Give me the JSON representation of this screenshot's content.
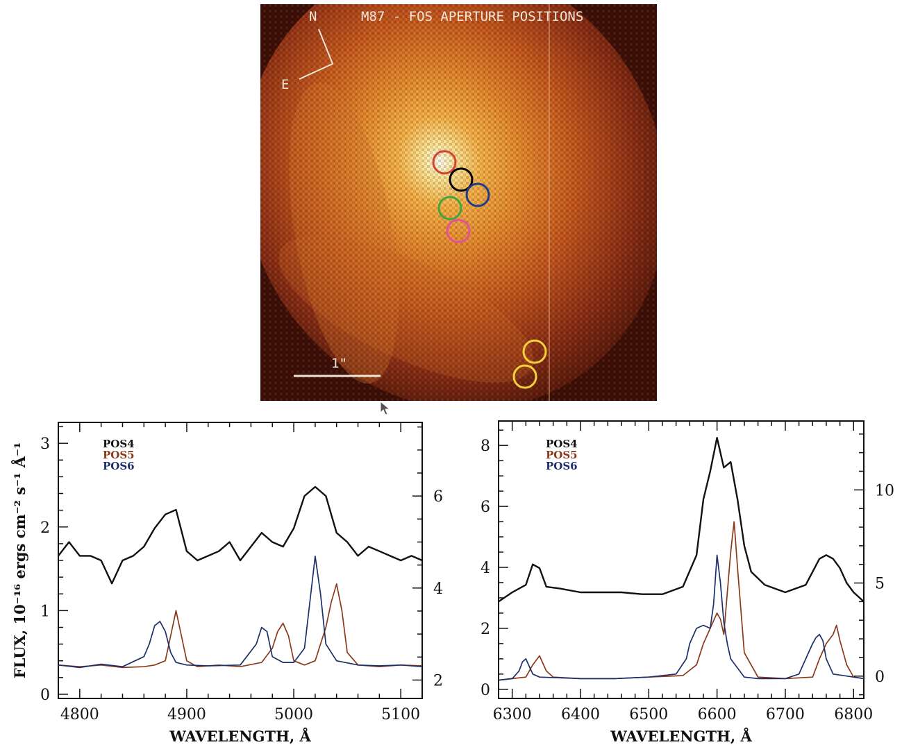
{
  "image_panel": {
    "title": "M87 - FOS APERTURE POSITIONS",
    "compass_north": "N",
    "compass_east": "E",
    "scale_label": "1\"",
    "apertures": [
      {
        "color": "#d2442f"
      },
      {
        "color": "#000000"
      },
      {
        "color": "#1d3c8c"
      },
      {
        "color": "#3da63d"
      },
      {
        "color": "#e4509a"
      },
      {
        "color": "#f3d23a"
      },
      {
        "color": "#f3d23a"
      }
    ]
  },
  "chart_data": [
    {
      "type": "line",
      "xlabel": "WAVELENGTH, Å",
      "ylabel": "FLUX, 10⁻¹⁶ ergs cm⁻² s⁻¹ Å⁻¹",
      "xlim": [
        4780,
        5120
      ],
      "ylim_left": [
        -0.05,
        3.25
      ],
      "ylim_right": [
        1.6,
        7.6
      ],
      "x_ticks": [
        4800,
        4900,
        5000,
        5100
      ],
      "y_ticks_left": [
        0,
        1,
        2,
        3
      ],
      "y_ticks_right": [
        2,
        4,
        6
      ],
      "legend": [
        "POS4",
        "POS5",
        "POS6"
      ],
      "legend_colors": [
        "#111111",
        "#8a3a1a",
        "#1d2f6a"
      ],
      "series": [
        {
          "name": "POS4",
          "axis": "right",
          "color": "#111111",
          "x": [
            4780,
            4790,
            4800,
            4810,
            4820,
            4830,
            4840,
            4850,
            4860,
            4870,
            4880,
            4890,
            4900,
            4910,
            4920,
            4930,
            4940,
            4950,
            4960,
            4970,
            4980,
            4990,
            5000,
            5010,
            5020,
            5030,
            5040,
            5050,
            5060,
            5070,
            5080,
            5090,
            5100,
            5110,
            5120
          ],
          "y": [
            4.7,
            5.0,
            4.7,
            4.7,
            4.6,
            4.1,
            4.6,
            4.7,
            4.9,
            5.3,
            5.6,
            5.7,
            4.8,
            4.6,
            4.7,
            4.8,
            5.0,
            4.6,
            4.9,
            5.2,
            5.0,
            4.9,
            5.3,
            6.0,
            6.2,
            6.0,
            5.2,
            5.0,
            4.7,
            4.9,
            4.8,
            4.7,
            4.6,
            4.7,
            4.6
          ]
        },
        {
          "name": "POS5",
          "axis": "left",
          "color": "#8a3a1a",
          "x": [
            4780,
            4800,
            4820,
            4840,
            4860,
            4870,
            4880,
            4885,
            4890,
            4895,
            4900,
            4910,
            4930,
            4950,
            4970,
            4980,
            4985,
            4990,
            4995,
            5000,
            5010,
            5020,
            5025,
            5030,
            5035,
            5040,
            5045,
            5050,
            5060,
            5080,
            5100,
            5120
          ],
          "y": [
            0.35,
            0.33,
            0.35,
            0.32,
            0.33,
            0.35,
            0.4,
            0.7,
            1.0,
            0.7,
            0.4,
            0.33,
            0.35,
            0.33,
            0.38,
            0.55,
            0.75,
            0.85,
            0.7,
            0.4,
            0.35,
            0.4,
            0.6,
            0.8,
            1.1,
            1.32,
            1.0,
            0.5,
            0.35,
            0.33,
            0.35,
            0.34
          ]
        },
        {
          "name": "POS6",
          "axis": "left",
          "color": "#1d2f6a",
          "x": [
            4780,
            4800,
            4820,
            4840,
            4860,
            4865,
            4870,
            4875,
            4880,
            4885,
            4890,
            4900,
            4920,
            4950,
            4965,
            4970,
            4975,
            4980,
            4990,
            5000,
            5010,
            5015,
            5020,
            5025,
            5030,
            5040,
            5060,
            5080,
            5100,
            5120
          ],
          "y": [
            0.35,
            0.32,
            0.36,
            0.33,
            0.45,
            0.6,
            0.82,
            0.87,
            0.75,
            0.5,
            0.38,
            0.35,
            0.34,
            0.35,
            0.6,
            0.8,
            0.75,
            0.45,
            0.38,
            0.38,
            0.55,
            1.1,
            1.65,
            1.2,
            0.6,
            0.4,
            0.35,
            0.34,
            0.35,
            0.33
          ]
        }
      ]
    },
    {
      "type": "line",
      "xlabel": "WAVELENGTH, Å",
      "ylabel": "",
      "xlim": [
        6280,
        6815
      ],
      "ylim_left": [
        -0.3,
        8.8
      ],
      "ylim_right": [
        -1.2,
        13.7
      ],
      "x_ticks": [
        6300,
        6400,
        6500,
        6600,
        6700,
        6800
      ],
      "y_ticks_left": [
        0,
        2,
        4,
        6,
        8
      ],
      "y_ticks_right": [
        0,
        5,
        10
      ],
      "legend": [
        "POS4",
        "POS5",
        "POS6"
      ],
      "legend_colors": [
        "#111111",
        "#8a3a1a",
        "#1d2f6a"
      ],
      "series": [
        {
          "name": "POS4",
          "axis": "right",
          "color": "#111111",
          "x": [
            6280,
            6300,
            6320,
            6330,
            6340,
            6350,
            6370,
            6400,
            6430,
            6460,
            6490,
            6520,
            6550,
            6570,
            6580,
            6590,
            6600,
            6610,
            6620,
            6630,
            6640,
            6650,
            6670,
            6700,
            6730,
            6750,
            6760,
            6770,
            6780,
            6790,
            6800,
            6815
          ],
          "y": [
            4.0,
            4.5,
            4.9,
            6.0,
            5.8,
            4.8,
            4.7,
            4.5,
            4.5,
            4.5,
            4.4,
            4.4,
            4.8,
            6.5,
            9.5,
            11.0,
            12.8,
            11.2,
            11.5,
            9.5,
            7.0,
            5.6,
            4.9,
            4.5,
            4.9,
            6.3,
            6.5,
            6.3,
            5.8,
            5.0,
            4.5,
            4.0
          ]
        },
        {
          "name": "POS5",
          "axis": "left",
          "color": "#8a3a1a",
          "x": [
            6280,
            6300,
            6320,
            6330,
            6340,
            6350,
            6360,
            6400,
            6450,
            6500,
            6550,
            6570,
            6580,
            6590,
            6600,
            6605,
            6610,
            6620,
            6625,
            6630,
            6640,
            6660,
            6700,
            6740,
            6750,
            6760,
            6770,
            6775,
            6780,
            6790,
            6800,
            6815
          ],
          "y": [
            0.3,
            0.35,
            0.4,
            0.8,
            1.1,
            0.6,
            0.4,
            0.35,
            0.35,
            0.4,
            0.45,
            0.8,
            1.5,
            2.0,
            2.5,
            2.3,
            1.8,
            4.5,
            5.5,
            4.0,
            1.2,
            0.4,
            0.35,
            0.4,
            1.0,
            1.5,
            1.8,
            2.1,
            1.6,
            0.8,
            0.4,
            0.35
          ]
        },
        {
          "name": "POS6",
          "axis": "left",
          "color": "#1d2f6a",
          "x": [
            6280,
            6300,
            6310,
            6315,
            6320,
            6330,
            6340,
            6400,
            6450,
            6500,
            6540,
            6555,
            6560,
            6570,
            6580,
            6590,
            6595,
            6600,
            6605,
            6610,
            6615,
            6620,
            6640,
            6660,
            6700,
            6720,
            6730,
            6740,
            6745,
            6750,
            6755,
            6760,
            6770,
            6800,
            6815
          ],
          "y": [
            0.3,
            0.35,
            0.6,
            0.9,
            1.0,
            0.5,
            0.4,
            0.35,
            0.35,
            0.4,
            0.5,
            1.0,
            1.5,
            2.0,
            2.1,
            2.0,
            2.8,
            4.4,
            3.5,
            2.2,
            1.5,
            1.0,
            0.4,
            0.35,
            0.35,
            0.5,
            1.0,
            1.5,
            1.7,
            1.8,
            1.6,
            1.0,
            0.5,
            0.4,
            0.35
          ]
        }
      ]
    }
  ]
}
